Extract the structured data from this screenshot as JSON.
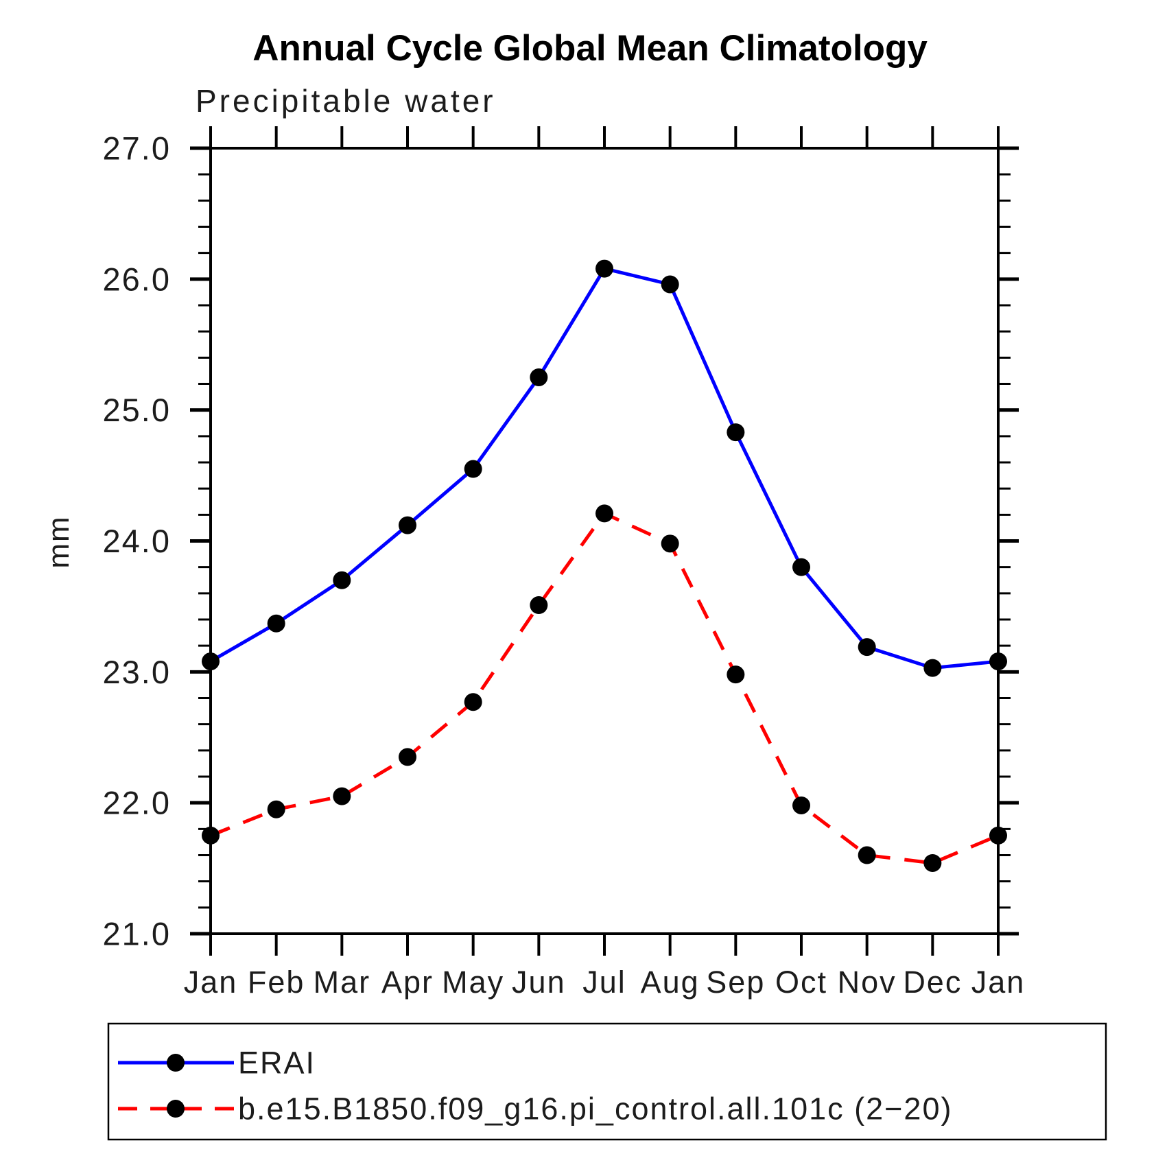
{
  "page": {
    "background_color": "#ffffff",
    "axis_color": "#000000",
    "marker_color": "#000000"
  },
  "chart_data": {
    "type": "line",
    "title": "Annual Cycle Global Mean Climatology",
    "subtitle": "Precipitable water",
    "ylabel": "mm",
    "xlabel": "",
    "x_categories": [
      "Jan",
      "Feb",
      "Mar",
      "Apr",
      "May",
      "Jun",
      "Jul",
      "Aug",
      "Sep",
      "Oct",
      "Nov",
      "Dec",
      "Jan"
    ],
    "ylim": [
      21.0,
      27.0
    ],
    "ytick_major_step": 1.0,
    "ytick_minor_step": 0.2,
    "ytick_labels": [
      "21.0",
      "22.0",
      "23.0",
      "24.0",
      "25.0",
      "26.0",
      "27.0"
    ],
    "grid": false,
    "legend_position": "bottom",
    "series": [
      {
        "name": "ERAI",
        "color": "#0000ff",
        "line_style": "solid",
        "marker": "filled-circle",
        "marker_color": "#000000",
        "values": [
          23.08,
          23.37,
          23.7,
          24.12,
          24.55,
          25.25,
          26.08,
          25.96,
          24.83,
          23.8,
          23.19,
          23.03,
          23.08
        ]
      },
      {
        "name": "b.e15.B1850.f09_g16.pi_control.all.101c (2−20)",
        "color": "#ff0000",
        "line_style": "dashed",
        "marker": "filled-circle",
        "marker_color": "#000000",
        "values": [
          21.75,
          21.95,
          22.05,
          22.35,
          22.77,
          23.51,
          24.21,
          23.98,
          22.98,
          21.98,
          21.6,
          21.54,
          21.75
        ]
      }
    ]
  }
}
